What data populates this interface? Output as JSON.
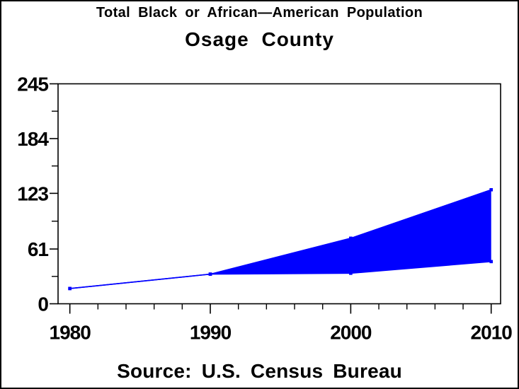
{
  "chart_data": {
    "type": "area",
    "title": "Total Black or African—American Population",
    "subtitle": "Osage County",
    "source_note": "Source: U.S. Census Bureau",
    "x": [
      1980,
      1990,
      2000,
      2010
    ],
    "series": [
      {
        "name": "upper-bound",
        "values": [
          17,
          33,
          73,
          127
        ]
      },
      {
        "name": "lower-bound",
        "values": [
          17,
          33,
          34,
          47
        ]
      }
    ],
    "fill_between_series": true,
    "fill_color": "#0000ff",
    "line_color": "#0000ff",
    "marker": "square",
    "axis_color": "#000000",
    "background_color": "#ffffff",
    "xlim": [
      1979.16,
      2010.67
    ],
    "ylim": [
      0,
      245
    ],
    "yticks": [
      0,
      61,
      123,
      184,
      245
    ],
    "xticks": [
      1980,
      1990,
      2000,
      2010
    ],
    "x_minor_step": 2,
    "grid": false,
    "legend": "none"
  }
}
